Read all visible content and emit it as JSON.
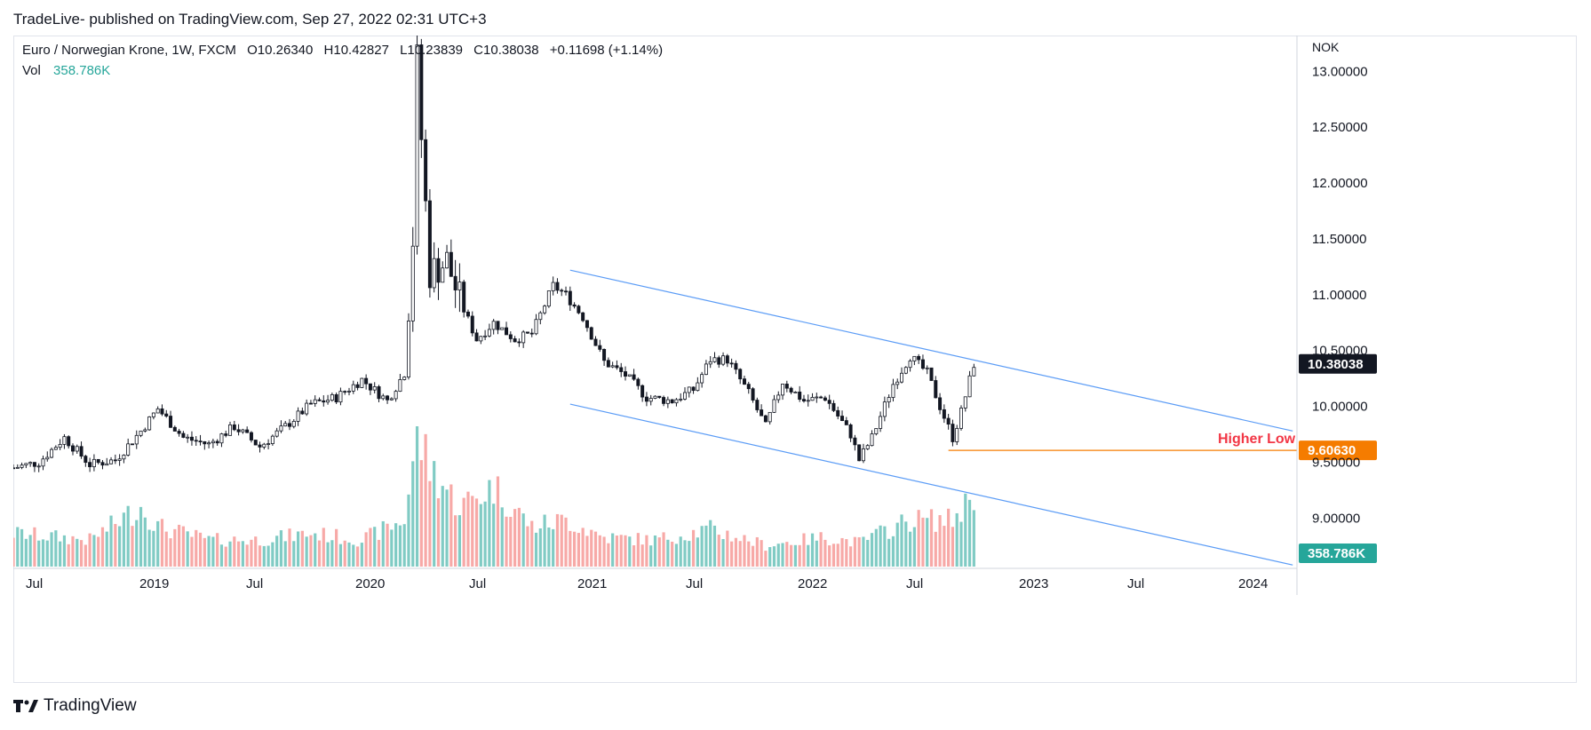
{
  "header": {
    "publish_line": "TradeLive- published on TradingView.com, Sep 27, 2022 02:31 UTC+3"
  },
  "legend": {
    "symbol": "Euro / Norwegian Krone, 1W, FXCM",
    "open": "O10.26340",
    "high": "H10.42827",
    "low": "L10.23839",
    "close": "C10.38038",
    "change": "+0.11698 (+1.14%)",
    "vol_label": "Vol",
    "vol_value": "358.786K"
  },
  "footer": {
    "brand": "TradingView"
  },
  "colors": {
    "candle_up": "#ffffff",
    "candle_down": "#131722",
    "vol_up": "#80cbc4",
    "vol_down": "#f7a9a7",
    "channel": "#2962ff",
    "support": "#f57c00",
    "annotation": "#f23645",
    "price_tag": "#131722",
    "support_tag": "#f57c00",
    "vol_tag": "#26a69a"
  },
  "chart_data": {
    "type": "candlestick",
    "currency_label": "NOK",
    "y_range": [
      8.55,
      13.32
    ],
    "y_ticks": [
      "13.00000",
      "12.50000",
      "12.00000",
      "11.50000",
      "11.00000",
      "10.50000",
      "10.00000",
      "9.50000",
      "9.00000"
    ],
    "x_ticks": [
      "Jul",
      "2019",
      "Jul",
      "2020",
      "Jul",
      "2021",
      "Jul",
      "2022",
      "Jul",
      "2023",
      "Jul",
      "2024"
    ],
    "x_range": [
      "2018-05-21",
      "2024-03-04"
    ],
    "price_tags": {
      "last_price": "10.38038",
      "support_price": "9.60630",
      "volume": "358.786K"
    },
    "annotation": "Higher Low",
    "channel_upper": {
      "start_date": "2020-11-23",
      "start_price": 11.22,
      "end_date": "2024-02-26",
      "end_price": 9.78
    },
    "channel_lower": {
      "start_date": "2020-11-23",
      "start_price": 10.02,
      "end_date": "2024-02-26",
      "end_price": 8.58
    },
    "support_line": {
      "start_date": "2022-08-08",
      "price": 9.6063
    },
    "price_points": [
      [
        "2018-05-21",
        9.45
      ],
      [
        "2018-07-02",
        9.5
      ],
      [
        "2018-08-13",
        9.72
      ],
      [
        "2018-09-24",
        9.48
      ],
      [
        "2018-11-05",
        9.52
      ],
      [
        "2018-12-17",
        9.78
      ],
      [
        "2019-01-14",
        9.98
      ],
      [
        "2019-02-25",
        9.72
      ],
      [
        "2019-04-08",
        9.66
      ],
      [
        "2019-05-20",
        9.82
      ],
      [
        "2019-07-01",
        9.64
      ],
      [
        "2019-08-12",
        9.82
      ],
      [
        "2019-09-23",
        10.02
      ],
      [
        "2019-11-04",
        10.08
      ],
      [
        "2019-12-16",
        10.24
      ],
      [
        "2020-01-27",
        10.05
      ],
      [
        "2020-02-24",
        10.3
      ],
      [
        "2020-03-09",
        11.5
      ],
      [
        "2020-03-16",
        13.1
      ],
      [
        "2020-03-23",
        12.4
      ],
      [
        "2020-04-06",
        11.2
      ],
      [
        "2020-05-04",
        11.3
      ],
      [
        "2020-05-25",
        10.95
      ],
      [
        "2020-06-22",
        10.6
      ],
      [
        "2020-07-20",
        10.75
      ],
      [
        "2020-08-24",
        10.6
      ],
      [
        "2020-09-21",
        10.65
      ],
      [
        "2020-10-26",
        11.08
      ],
      [
        "2020-11-16",
        11.0
      ],
      [
        "2020-12-14",
        10.8
      ],
      [
        "2021-01-18",
        10.4
      ],
      [
        "2021-02-22",
        10.28
      ],
      [
        "2021-03-29",
        10.08
      ],
      [
        "2021-05-10",
        10.05
      ],
      [
        "2021-06-14",
        10.15
      ],
      [
        "2021-07-12",
        10.42
      ],
      [
        "2021-08-09",
        10.42
      ],
      [
        "2021-09-13",
        10.12
      ],
      [
        "2021-10-11",
        9.82
      ],
      [
        "2021-11-08",
        10.22
      ],
      [
        "2021-12-13",
        10.05
      ],
      [
        "2022-01-17",
        10.08
      ],
      [
        "2022-02-28",
        9.75
      ],
      [
        "2022-03-14",
        9.52
      ],
      [
        "2022-04-04",
        9.72
      ],
      [
        "2022-05-09",
        10.2
      ],
      [
        "2022-06-06",
        10.45
      ],
      [
        "2022-07-04",
        10.3
      ],
      [
        "2022-07-25",
        10.0
      ],
      [
        "2022-08-15",
        9.72
      ],
      [
        "2022-08-29",
        9.95
      ],
      [
        "2022-09-19",
        10.38
      ]
    ],
    "volume_points": [
      [
        "2018-05-21",
        0.25
      ],
      [
        "2018-09-24",
        0.2
      ],
      [
        "2018-12-17",
        0.45
      ],
      [
        "2019-01-14",
        0.3
      ],
      [
        "2019-04-08",
        0.2
      ],
      [
        "2019-07-01",
        0.2
      ],
      [
        "2019-09-23",
        0.25
      ],
      [
        "2019-12-16",
        0.2
      ],
      [
        "2020-02-24",
        0.35
      ],
      [
        "2020-03-16",
        1.0
      ],
      [
        "2020-04-06",
        0.75
      ],
      [
        "2020-05-25",
        0.45
      ],
      [
        "2020-07-20",
        0.6
      ],
      [
        "2020-09-21",
        0.3
      ],
      [
        "2020-11-16",
        0.35
      ],
      [
        "2021-01-18",
        0.22
      ],
      [
        "2021-04-12",
        0.2
      ],
      [
        "2021-07-12",
        0.28
      ],
      [
        "2021-10-11",
        0.16
      ],
      [
        "2022-01-17",
        0.22
      ],
      [
        "2022-03-14",
        0.18
      ],
      [
        "2022-06-06",
        0.35
      ],
      [
        "2022-08-15",
        0.35
      ],
      [
        "2022-09-19",
        0.55
      ]
    ]
  }
}
